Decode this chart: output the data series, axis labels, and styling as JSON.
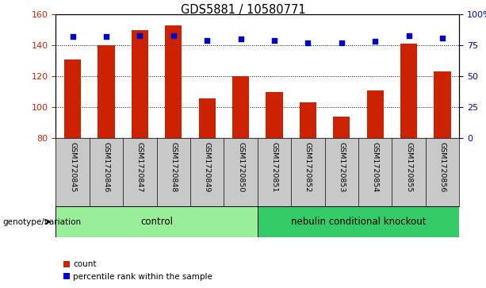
{
  "title": "GDS5881 / 10580771",
  "samples": [
    "GSM1720845",
    "GSM1720846",
    "GSM1720847",
    "GSM1720848",
    "GSM1720849",
    "GSM1720850",
    "GSM1720851",
    "GSM1720852",
    "GSM1720853",
    "GSM1720854",
    "GSM1720855",
    "GSM1720856"
  ],
  "counts": [
    131,
    140,
    150,
    153,
    106,
    120,
    110,
    103,
    94,
    111,
    141,
    123
  ],
  "percentiles": [
    82,
    82,
    83,
    83,
    79,
    80,
    79,
    77,
    77,
    78,
    83,
    81
  ],
  "ylim_left": [
    80,
    160
  ],
  "ylim_right": [
    0,
    100
  ],
  "yticks_left": [
    80,
    100,
    120,
    140,
    160
  ],
  "yticks_right": [
    0,
    25,
    50,
    75,
    100
  ],
  "bar_color": "#CC2200",
  "dot_color": "#0000CC",
  "bar_width": 0.5,
  "n_ctrl": 6,
  "n_ko": 6,
  "control_label": "control",
  "knockout_label": "nebulin conditional knockout",
  "genotype_label": "genotype/variation",
  "legend_count": "count",
  "legend_percentile": "percentile rank within the sample",
  "control_color": "#99EE99",
  "knockout_color": "#33CC66",
  "tick_area_color": "#C8C8C8"
}
